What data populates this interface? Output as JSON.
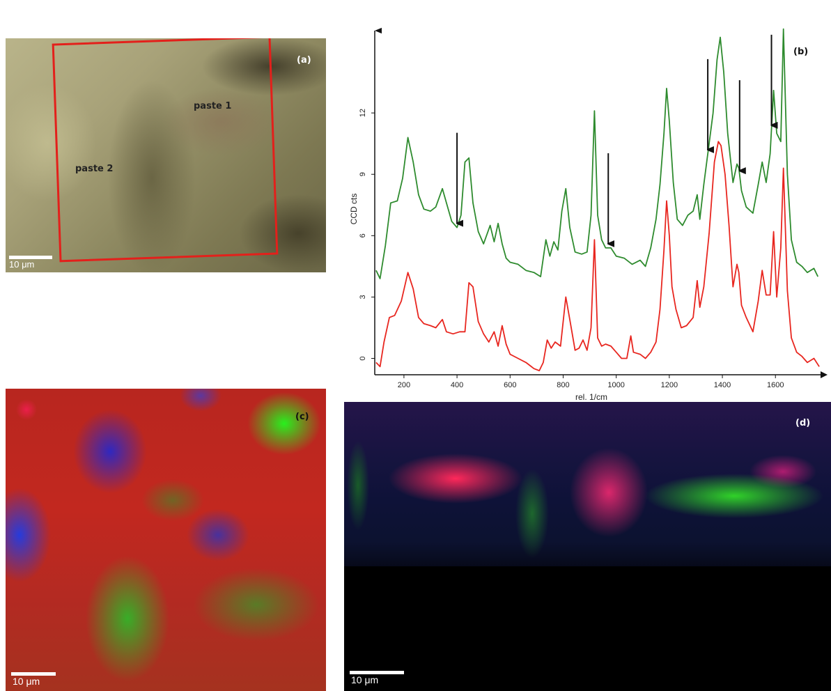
{
  "panel_a": {
    "letter": "(a)",
    "label_paste1": "paste 1",
    "label_paste2": "paste 2",
    "scale_text": "10 μm"
  },
  "panel_c": {
    "letter": "(c)",
    "scale_text": "10 μm"
  },
  "panel_d": {
    "letter": "(d)",
    "scale_text": "10 μm"
  },
  "chart_data": {
    "type": "line",
    "panel_letter": "(b)",
    "xlabel": "rel. 1/cm",
    "ylabel": "CCD cts",
    "xlim": [
      90,
      1770
    ],
    "ylim": [
      -0.8,
      16.5
    ],
    "xticks": [
      200,
      400,
      600,
      800,
      1000,
      1200,
      1400,
      1600
    ],
    "yticks": [
      0,
      3,
      6,
      9,
      12
    ],
    "arrows_at_x": [
      400,
      970,
      1345,
      1465,
      1585
    ],
    "series": [
      {
        "color": "#2e8b2e",
        "x": [
          95,
          110,
          130,
          150,
          175,
          195,
          215,
          235,
          255,
          275,
          300,
          320,
          345,
          360,
          380,
          400,
          415,
          430,
          445,
          460,
          480,
          500,
          525,
          540,
          555,
          570,
          585,
          600,
          630,
          660,
          690,
          715,
          735,
          750,
          765,
          780,
          795,
          810,
          825,
          845,
          870,
          890,
          905,
          918,
          930,
          945,
          960,
          980,
          1000,
          1030,
          1060,
          1090,
          1110,
          1130,
          1150,
          1165,
          1180,
          1190,
          1200,
          1215,
          1230,
          1250,
          1270,
          1290,
          1305,
          1315,
          1330,
          1350,
          1365,
          1380,
          1392,
          1405,
          1420,
          1440,
          1455,
          1462,
          1472,
          1490,
          1515,
          1535,
          1550,
          1565,
          1580,
          1593,
          1605,
          1620,
          1630,
          1645,
          1660,
          1680,
          1700,
          1720,
          1745,
          1760
        ],
        "y": [
          4.3,
          3.9,
          5.5,
          7.6,
          7.7,
          8.8,
          10.8,
          9.6,
          8.0,
          7.3,
          7.2,
          7.4,
          8.3,
          7.6,
          6.7,
          6.4,
          7.0,
          9.6,
          9.8,
          7.6,
          6.2,
          5.6,
          6.5,
          5.7,
          6.6,
          5.6,
          4.9,
          4.7,
          4.6,
          4.3,
          4.2,
          4.0,
          5.8,
          5.0,
          5.7,
          5.3,
          7.2,
          8.3,
          6.4,
          5.2,
          5.1,
          5.2,
          7.0,
          12.1,
          7.0,
          5.8,
          5.4,
          5.4,
          5.0,
          4.9,
          4.6,
          4.8,
          4.5,
          5.4,
          6.8,
          8.5,
          11.0,
          13.2,
          11.6,
          8.6,
          6.8,
          6.5,
          7.0,
          7.2,
          8.0,
          6.8,
          8.5,
          10.5,
          12.0,
          14.6,
          15.7,
          14.0,
          11.0,
          8.6,
          9.5,
          9.3,
          8.2,
          7.4,
          7.1,
          8.5,
          9.6,
          8.6,
          10.0,
          13.1,
          11.0,
          10.6,
          16.1,
          9.0,
          5.8,
          4.7,
          4.5,
          4.2,
          4.4,
          4.0
        ]
      },
      {
        "color": "#e8261f",
        "x": [
          95,
          110,
          125,
          145,
          165,
          190,
          215,
          235,
          255,
          275,
          300,
          320,
          345,
          360,
          385,
          410,
          430,
          445,
          460,
          480,
          500,
          520,
          540,
          555,
          570,
          585,
          600,
          630,
          660,
          690,
          710,
          725,
          740,
          755,
          770,
          790,
          810,
          825,
          845,
          860,
          875,
          890,
          905,
          918,
          930,
          945,
          960,
          980,
          1000,
          1020,
          1040,
          1055,
          1065,
          1090,
          1110,
          1130,
          1150,
          1165,
          1180,
          1190,
          1200,
          1210,
          1225,
          1245,
          1265,
          1290,
          1305,
          1315,
          1330,
          1350,
          1370,
          1385,
          1395,
          1410,
          1425,
          1440,
          1455,
          1462,
          1472,
          1490,
          1515,
          1535,
          1550,
          1565,
          1580,
          1593,
          1605,
          1620,
          1630,
          1645,
          1660,
          1680,
          1700,
          1720,
          1745,
          1765
        ],
        "y": [
          -0.2,
          -0.4,
          0.8,
          2.0,
          2.1,
          2.8,
          4.2,
          3.4,
          2.0,
          1.7,
          1.6,
          1.5,
          1.9,
          1.3,
          1.2,
          1.3,
          1.3,
          3.7,
          3.5,
          1.8,
          1.2,
          0.8,
          1.3,
          0.6,
          1.6,
          0.7,
          0.2,
          0.0,
          -0.2,
          -0.5,
          -0.6,
          -0.2,
          0.9,
          0.5,
          0.8,
          0.6,
          3.0,
          1.9,
          0.4,
          0.5,
          0.9,
          0.4,
          1.5,
          5.8,
          1.0,
          0.6,
          0.7,
          0.6,
          0.3,
          0.0,
          0.0,
          1.1,
          0.3,
          0.2,
          0.0,
          0.3,
          0.8,
          2.4,
          5.3,
          7.7,
          6.0,
          3.5,
          2.4,
          1.5,
          1.6,
          2.0,
          3.8,
          2.5,
          3.5,
          6.1,
          9.6,
          10.6,
          10.4,
          9.0,
          6.5,
          3.5,
          4.6,
          4.2,
          2.6,
          2.0,
          1.3,
          2.8,
          4.3,
          3.1,
          3.1,
          6.2,
          3.0,
          5.4,
          9.3,
          3.3,
          1.0,
          0.3,
          0.1,
          -0.2,
          0.0,
          -0.4
        ]
      }
    ]
  }
}
